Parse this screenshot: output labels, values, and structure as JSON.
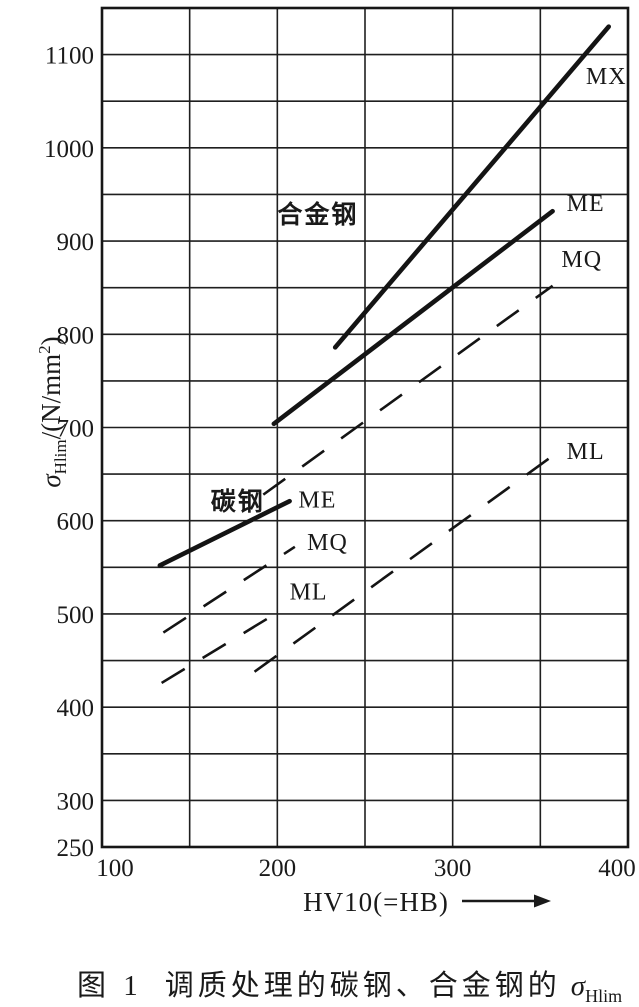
{
  "page": {
    "background": "#ffffff",
    "ink": "#1a1a1a"
  },
  "figure_caption": {
    "prefix": "图 1",
    "body": "调质处理的碳钢、合金钢的",
    "sigma": "σ",
    "sigma_sub": "Hlim"
  },
  "chart_data": {
    "type": "line",
    "title": "",
    "grid": "on",
    "legend": "inline-labels",
    "x_axis": {
      "label": "HV10(=HB)",
      "min": 100,
      "max": 400,
      "grid_step": 50,
      "tick_labels": [
        100,
        200,
        300,
        400
      ],
      "arrow": true
    },
    "y_axis": {
      "label": "σHlim/(N/mm²)",
      "label_parts": {
        "sigma": "σ",
        "sub": "Hlim",
        "mid": "/(N/mm",
        "sup": "2",
        "end": ")"
      },
      "min": 250,
      "max": 1150,
      "grid_step": 50,
      "tick_labels": [
        250,
        300,
        400,
        500,
        600,
        700,
        800,
        900,
        1000,
        1100
      ]
    },
    "groups": [
      {
        "id": "alloy",
        "label": "合金钢",
        "label_anchor": [
          200,
          929
        ]
      },
      {
        "id": "carbon",
        "label": "碳钢",
        "label_anchor": [
          162,
          621
        ]
      }
    ],
    "series": [
      {
        "group": "alloy",
        "grade": "MX",
        "line": "solid",
        "points": [
          [
            233,
            786
          ],
          [
            389,
            1130
          ]
        ],
        "label_anchor": [
          376,
          1077
        ]
      },
      {
        "group": "alloy",
        "grade": "ME",
        "line": "solid",
        "points": [
          [
            198,
            704
          ],
          [
            357,
            932
          ]
        ],
        "label_anchor": [
          365,
          941
        ]
      },
      {
        "group": "alloy",
        "grade": "MQ",
        "line": "dashed",
        "points": [
          [
            192,
            628
          ],
          [
            357,
            852
          ]
        ],
        "label_anchor": [
          362,
          881
        ]
      },
      {
        "group": "alloy",
        "grade": "ML",
        "line": "dashed",
        "points": [
          [
            187,
            438
          ],
          [
            361,
            675
          ]
        ],
        "label_anchor": [
          365,
          675
        ]
      },
      {
        "group": "carbon",
        "grade": "ME",
        "line": "solid",
        "points": [
          [
            133,
            552
          ],
          [
            207,
            621
          ]
        ],
        "label_anchor": [
          212,
          623
        ]
      },
      {
        "group": "carbon",
        "grade": "MQ",
        "line": "dashed",
        "points": [
          [
            135,
            480
          ],
          [
            210,
            572
          ]
        ],
        "label_anchor": [
          217,
          577
        ]
      },
      {
        "group": "carbon",
        "grade": "ML",
        "line": "dashed",
        "points": [
          [
            134,
            426
          ],
          [
            204,
            506
          ]
        ],
        "label_anchor": [
          207,
          524
        ]
      }
    ]
  }
}
